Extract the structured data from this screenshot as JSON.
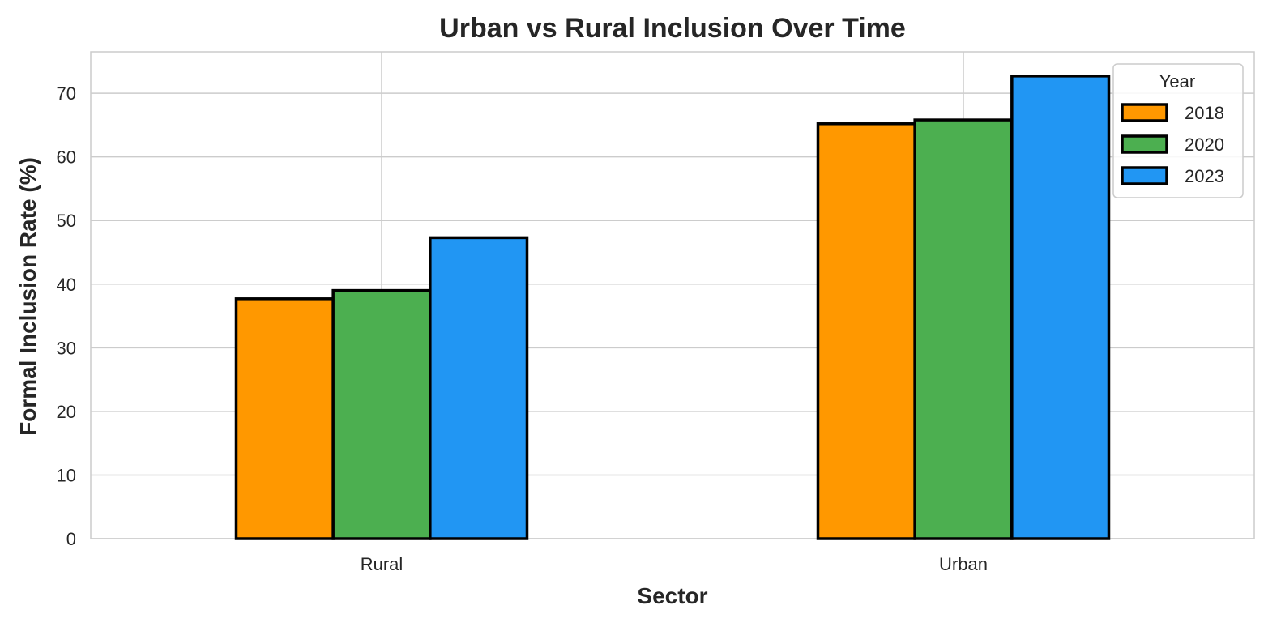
{
  "chart_data": {
    "type": "bar",
    "title": "Urban vs Rural Inclusion Over Time",
    "xlabel": "Sector",
    "ylabel": "Formal Inclusion Rate (%)",
    "categories": [
      "Rural",
      "Urban"
    ],
    "series": [
      {
        "name": "2018",
        "color": "#ff9800",
        "values": [
          37.7,
          65.2
        ]
      },
      {
        "name": "2020",
        "color": "#4caf50",
        "values": [
          39.0,
          65.8
        ]
      },
      {
        "name": "2023",
        "color": "#2196f3",
        "values": [
          47.3,
          72.7
        ]
      }
    ],
    "ylim": [
      0,
      76.5
    ],
    "yticks": [
      0,
      10,
      20,
      30,
      40,
      50,
      60,
      70
    ],
    "legend_title": "Year",
    "legend_position": "top-right",
    "grid": true
  }
}
